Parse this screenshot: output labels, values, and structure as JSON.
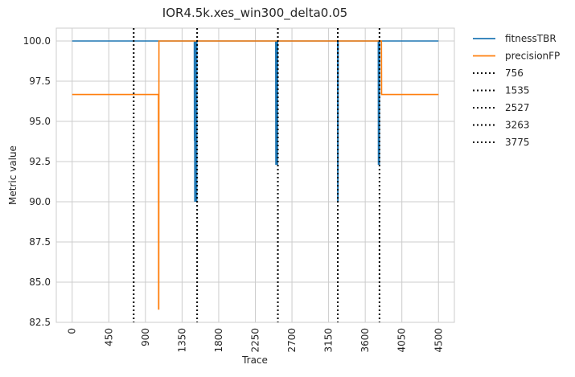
{
  "chart_data": {
    "type": "line",
    "title": "IOR4.5k.xes_win300_delta0.05",
    "xlabel": "Trace",
    "ylabel": "Metric value",
    "xlim": [
      -195,
      4695
    ],
    "ylim": [
      82.5,
      100.8
    ],
    "x_ticks": [
      0,
      450,
      900,
      1350,
      1800,
      2250,
      2700,
      3150,
      3600,
      4050,
      4500
    ],
    "y_ticks": [
      82.5,
      85.0,
      87.5,
      90.0,
      92.5,
      95.0,
      97.5,
      100.0
    ],
    "y_tick_labels": [
      "82.5",
      "85.0",
      "87.5",
      "90.0",
      "92.5",
      "95.0",
      "97.5",
      "100.0"
    ],
    "grid": true,
    "legend_position": "outside-right",
    "series": [
      {
        "name": "fitnessTBR",
        "color": "#1f77b4",
        "x": [
          0,
          1500,
          1502,
          1504,
          1506,
          1508,
          1510,
          1512,
          1514,
          1516,
          1518,
          1520,
          1522,
          1524,
          1526,
          1528,
          1530,
          1532,
          1534,
          2500,
          2502,
          2504,
          2506,
          2508,
          2510,
          2512,
          2514,
          2516,
          2518,
          2520,
          2522,
          2524,
          2526,
          3260,
          3262,
          3264,
          3266,
          3268,
          3270,
          3760,
          3762,
          3764,
          3766,
          3768,
          3770,
          3772,
          3774,
          3776,
          3778,
          4500
        ],
        "y": [
          100.0,
          100.0,
          93.8,
          100.0,
          90.0,
          100.0,
          91.0,
          100.0,
          90.0,
          100.0,
          92.0,
          100.0,
          90.0,
          100.0,
          91.5,
          100.0,
          90.0,
          100.0,
          100.0,
          100.0,
          92.3,
          100.0,
          92.3,
          100.0,
          92.3,
          100.0,
          92.3,
          100.0,
          92.3,
          100.0,
          92.3,
          100.0,
          100.0,
          100.0,
          90.0,
          100.0,
          90.0,
          100.0,
          100.0,
          100.0,
          92.3,
          100.0,
          92.3,
          100.0,
          92.3,
          100.0,
          92.3,
          100.0,
          100.0,
          100.0
        ]
      },
      {
        "name": "precisionFP",
        "color": "#ff7f0e",
        "x": [
          0,
          1060,
          1062,
          1064,
          1066,
          3799,
          3801,
          4500
        ],
        "y": [
          96.67,
          96.67,
          83.33,
          83.33,
          100.0,
          100.0,
          96.67,
          96.67
        ]
      }
    ],
    "vlines": [
      {
        "x": 756,
        "label": "756"
      },
      {
        "x": 1535,
        "label": "1535"
      },
      {
        "x": 2527,
        "label": "2527"
      },
      {
        "x": 3263,
        "label": "3263"
      },
      {
        "x": 3775,
        "label": "3775"
      }
    ]
  },
  "colors": {
    "grid": "#cccccc",
    "axes_edge": "#cccccc",
    "vline": "#000000"
  }
}
